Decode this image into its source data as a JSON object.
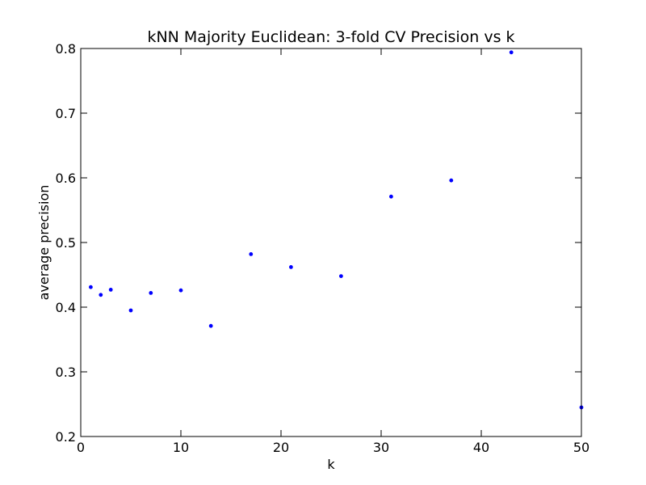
{
  "chart_data": {
    "type": "scatter",
    "title": "kNN Majority Euclidean: 3-fold CV Precision vs k",
    "xlabel": "k",
    "ylabel": "average precision",
    "xlim": [
      0,
      50
    ],
    "ylim": [
      0.2,
      0.8
    ],
    "xticks": [
      0,
      10,
      20,
      30,
      40,
      50
    ],
    "yticks": [
      0.2,
      0.3,
      0.4,
      0.5,
      0.6,
      0.7,
      0.8
    ],
    "xtick_labels": [
      "0",
      "10",
      "20",
      "30",
      "40",
      "50"
    ],
    "ytick_labels": [
      "0.2",
      "0.3",
      "0.4",
      "0.5",
      "0.6",
      "0.7",
      "0.8"
    ],
    "grid": false,
    "marker_color": "#0000ff",
    "series": [
      {
        "x": [
          1,
          2,
          3,
          5,
          7,
          10,
          13,
          17,
          21,
          26,
          31,
          37,
          43,
          50
        ],
        "y": [
          0.431,
          0.419,
          0.427,
          0.395,
          0.422,
          0.426,
          0.371,
          0.482,
          0.462,
          0.448,
          0.571,
          0.596,
          0.794,
          0.245
        ]
      }
    ]
  }
}
